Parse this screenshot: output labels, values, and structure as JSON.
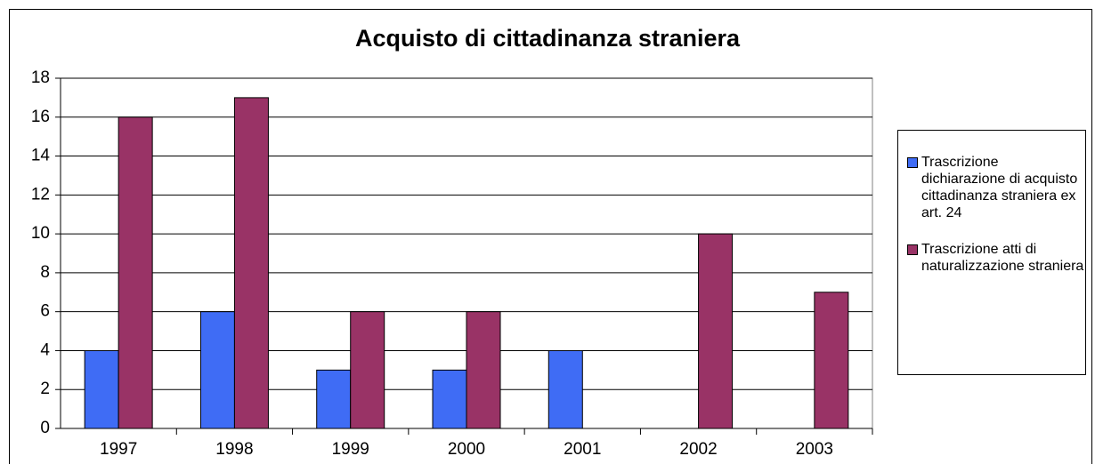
{
  "chart_data": {
    "type": "bar",
    "title": "Acquisto di cittadinanza straniera",
    "categories": [
      "1997",
      "1998",
      "1999",
      "2000",
      "2001",
      "2002",
      "2003"
    ],
    "series": [
      {
        "name": "Trascrizione dichiarazione di acquisto cittadinanza straniera ex art. 24",
        "color": "#3f6cf5",
        "values": [
          4,
          6,
          3,
          3,
          4,
          0,
          0
        ]
      },
      {
        "name": "Trascrizione atti di naturalizzazione straniera",
        "color": "#993366",
        "values": [
          16,
          17,
          6,
          6,
          0,
          10,
          7
        ]
      }
    ],
    "ylim": [
      0,
      18
    ],
    "yticks": [
      0,
      2,
      4,
      6,
      8,
      10,
      12,
      14,
      16,
      18
    ],
    "grid": true,
    "legend": "right"
  }
}
